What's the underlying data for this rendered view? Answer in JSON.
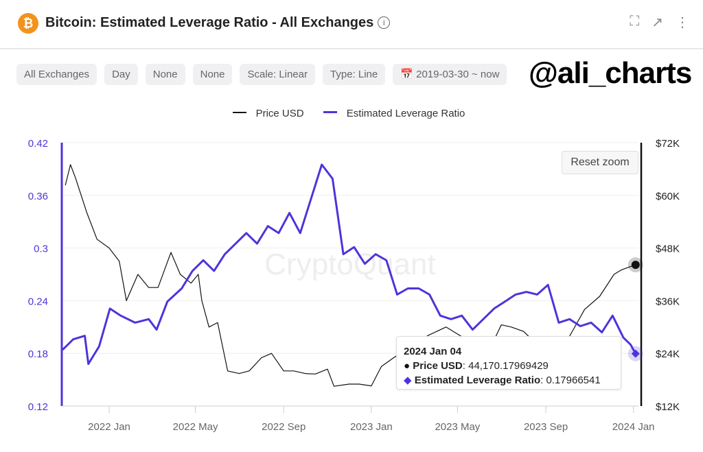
{
  "header": {
    "title": "Bitcoin: Estimated Leverage Ratio - All Exchanges",
    "logo": "bitcoin-logo",
    "icons": [
      "fullscreen-icon",
      "external-link-icon",
      "more-vertical-icon"
    ]
  },
  "filters": [
    "All Exchanges",
    "Day",
    "None",
    "None",
    "Scale: Linear",
    "Type: Line",
    "2019-03-30 ~ now"
  ],
  "brand": "@ali_charts",
  "watermark": "CryptoQuant",
  "reset_zoom": "Reset zoom",
  "colors": {
    "price": "#111111",
    "leverage": "#4b35d9"
  },
  "tooltip": {
    "date": "2024 Jan 04",
    "price_label": "Price USD",
    "price_value": ": 44,170.17969429",
    "lev_label": "Estimated Leverage Ratio",
    "lev_value": ": 0.17966541"
  },
  "chart_data": {
    "type": "line",
    "legend": [
      "Price USD",
      "Estimated Leverage Ratio"
    ],
    "legend_placement": "top",
    "x_ticks": [
      "2022 Jan",
      "2022 May",
      "2022 Sep",
      "2023 Jan",
      "2023 May",
      "2023 Sep",
      "2024 Jan"
    ],
    "x_tick_dates": [
      "2022-01-01",
      "2022-05-01",
      "2022-09-01",
      "2023-01-01",
      "2023-05-01",
      "2023-09-01",
      "2024-01-01"
    ],
    "xlim": [
      "2021-10-27",
      "2024-01-08"
    ],
    "y_left": {
      "ticks": [
        "0.12",
        "0.18",
        "0.24",
        "0.3",
        "0.36",
        "0.42"
      ],
      "ylim": [
        0.12,
        0.42
      ]
    },
    "y_right": {
      "ticks": [
        "$12K",
        "$24K",
        "$36K",
        "$48K",
        "$60K",
        "$72K"
      ],
      "ylim": [
        12000,
        72000
      ]
    },
    "grid": true,
    "series": [
      {
        "name": "Price USD",
        "axis": "right",
        "points": [
          [
            "2021-11-01",
            62300
          ],
          [
            "2021-11-08",
            67000
          ],
          [
            "2021-11-15",
            64000
          ],
          [
            "2021-12-01",
            56000
          ],
          [
            "2021-12-15",
            50000
          ],
          [
            "2022-01-01",
            48000
          ],
          [
            "2022-01-15",
            45000
          ],
          [
            "2022-01-25",
            36000
          ],
          [
            "2022-02-10",
            42000
          ],
          [
            "2022-02-25",
            39000
          ],
          [
            "2022-03-10",
            39000
          ],
          [
            "2022-03-28",
            47000
          ],
          [
            "2022-04-10",
            42000
          ],
          [
            "2022-04-25",
            40000
          ],
          [
            "2022-05-05",
            42000
          ],
          [
            "2022-05-10",
            36000
          ],
          [
            "2022-05-20",
            30000
          ],
          [
            "2022-06-01",
            31000
          ],
          [
            "2022-06-15",
            20000
          ],
          [
            "2022-07-01",
            19400
          ],
          [
            "2022-07-15",
            20000
          ],
          [
            "2022-08-01",
            23000
          ],
          [
            "2022-08-15",
            24000
          ],
          [
            "2022-09-01",
            20000
          ],
          [
            "2022-09-15",
            20000
          ],
          [
            "2022-10-01",
            19400
          ],
          [
            "2022-10-15",
            19300
          ],
          [
            "2022-11-01",
            20400
          ],
          [
            "2022-11-10",
            16500
          ],
          [
            "2022-12-01",
            17000
          ],
          [
            "2022-12-15",
            17000
          ],
          [
            "2023-01-01",
            16600
          ],
          [
            "2023-01-15",
            21000
          ],
          [
            "2023-02-01",
            23000
          ],
          [
            "2023-02-15",
            24500
          ],
          [
            "2023-03-10",
            20000
          ],
          [
            "2023-03-20",
            28000
          ],
          [
            "2023-04-15",
            30000
          ],
          [
            "2023-05-15",
            27000
          ],
          [
            "2023-06-15",
            25000
          ],
          [
            "2023-07-01",
            30500
          ],
          [
            "2023-07-15",
            30000
          ],
          [
            "2023-08-01",
            29000
          ],
          [
            "2023-08-20",
            26000
          ],
          [
            "2023-09-15",
            26500
          ],
          [
            "2023-10-01",
            27000
          ],
          [
            "2023-10-25",
            34000
          ],
          [
            "2023-11-15",
            37000
          ],
          [
            "2023-12-05",
            42000
          ],
          [
            "2023-12-15",
            43000
          ],
          [
            "2024-01-04",
            44170.18
          ]
        ]
      },
      {
        "name": "Estimated Leverage Ratio",
        "axis": "left",
        "points": [
          [
            "2021-10-28",
            0.184
          ],
          [
            "2021-11-12",
            0.196
          ],
          [
            "2021-11-28",
            0.2
          ],
          [
            "2021-12-03",
            0.168
          ],
          [
            "2021-12-18",
            0.188
          ],
          [
            "2022-01-02",
            0.231
          ],
          [
            "2022-01-17",
            0.223
          ],
          [
            "2022-02-06",
            0.215
          ],
          [
            "2022-02-25",
            0.219
          ],
          [
            "2022-03-08",
            0.207
          ],
          [
            "2022-03-23",
            0.239
          ],
          [
            "2022-04-12",
            0.254
          ],
          [
            "2022-04-27",
            0.274
          ],
          [
            "2022-05-12",
            0.286
          ],
          [
            "2022-05-27",
            0.274
          ],
          [
            "2022-06-11",
            0.293
          ],
          [
            "2022-06-26",
            0.305
          ],
          [
            "2022-07-11",
            0.317
          ],
          [
            "2022-07-26",
            0.305
          ],
          [
            "2022-08-10",
            0.325
          ],
          [
            "2022-08-25",
            0.317
          ],
          [
            "2022-09-09",
            0.34
          ],
          [
            "2022-09-24",
            0.317
          ],
          [
            "2022-10-09",
            0.356
          ],
          [
            "2022-10-24",
            0.395
          ],
          [
            "2022-11-08",
            0.379
          ],
          [
            "2022-11-23",
            0.293
          ],
          [
            "2022-12-08",
            0.301
          ],
          [
            "2022-12-23",
            0.282
          ],
          [
            "2023-01-07",
            0.293
          ],
          [
            "2023-01-22",
            0.286
          ],
          [
            "2023-02-06",
            0.247
          ],
          [
            "2023-02-21",
            0.254
          ],
          [
            "2023-03-08",
            0.254
          ],
          [
            "2023-03-23",
            0.247
          ],
          [
            "2023-04-07",
            0.223
          ],
          [
            "2023-04-22",
            0.219
          ],
          [
            "2023-05-07",
            0.223
          ],
          [
            "2023-05-22",
            0.207
          ],
          [
            "2023-06-06",
            0.219
          ],
          [
            "2023-06-21",
            0.231
          ],
          [
            "2023-07-06",
            0.239
          ],
          [
            "2023-07-21",
            0.247
          ],
          [
            "2023-08-05",
            0.25
          ],
          [
            "2023-08-20",
            0.247
          ],
          [
            "2023-09-04",
            0.258
          ],
          [
            "2023-09-19",
            0.215
          ],
          [
            "2023-10-04",
            0.219
          ],
          [
            "2023-10-19",
            0.211
          ],
          [
            "2023-11-03",
            0.215
          ],
          [
            "2023-11-18",
            0.204
          ],
          [
            "2023-12-03",
            0.223
          ],
          [
            "2023-12-18",
            0.198
          ],
          [
            "2023-12-28",
            0.19
          ],
          [
            "2024-01-04",
            0.17966541
          ]
        ]
      }
    ]
  }
}
